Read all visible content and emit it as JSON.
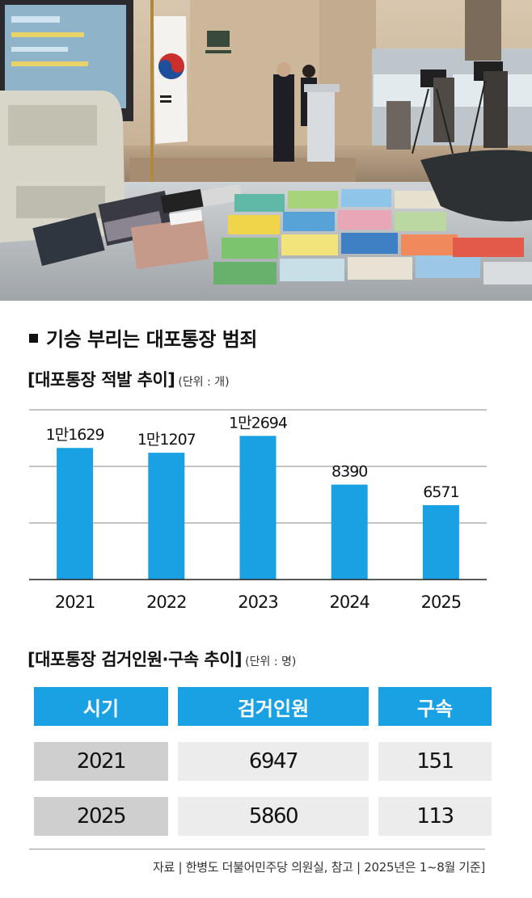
{
  "headline": "기승 부리는 대포통장 범죄",
  "chart_section": {
    "title": "[대포통장 적발 추이]",
    "unit": "(단위 : 개)"
  },
  "chart_data": {
    "type": "bar",
    "title": "[대포통장 적발 추이]",
    "unit": "(단위 : 개)",
    "categories": [
      "2021",
      "2022",
      "2023",
      "2024",
      "2025"
    ],
    "values": [
      11629,
      11207,
      12694,
      8390,
      6571
    ],
    "value_labels": [
      "1만1629",
      "1만1207",
      "1만2694",
      "8390",
      "6571"
    ],
    "ylim": [
      0,
      15000
    ],
    "grid": true,
    "bar_color": "#1aa1e4"
  },
  "table_section": {
    "title": "[대포통장 검거인원·구속 추이]",
    "unit": "(단위 : 명)",
    "headers": [
      "시기",
      "검거인원",
      "구속"
    ],
    "rows": [
      [
        "2021",
        "6947",
        "151"
      ],
      [
        "2025",
        "5860",
        "113"
      ]
    ]
  },
  "source": "자료 | 한병도 더불어민주당 의원실, 참고 | 2025년은 1~8월 기준]",
  "colors": {
    "accent": "#1aa1e4",
    "year_cell": "#cfcfcf",
    "value_cell": "#ececec"
  }
}
